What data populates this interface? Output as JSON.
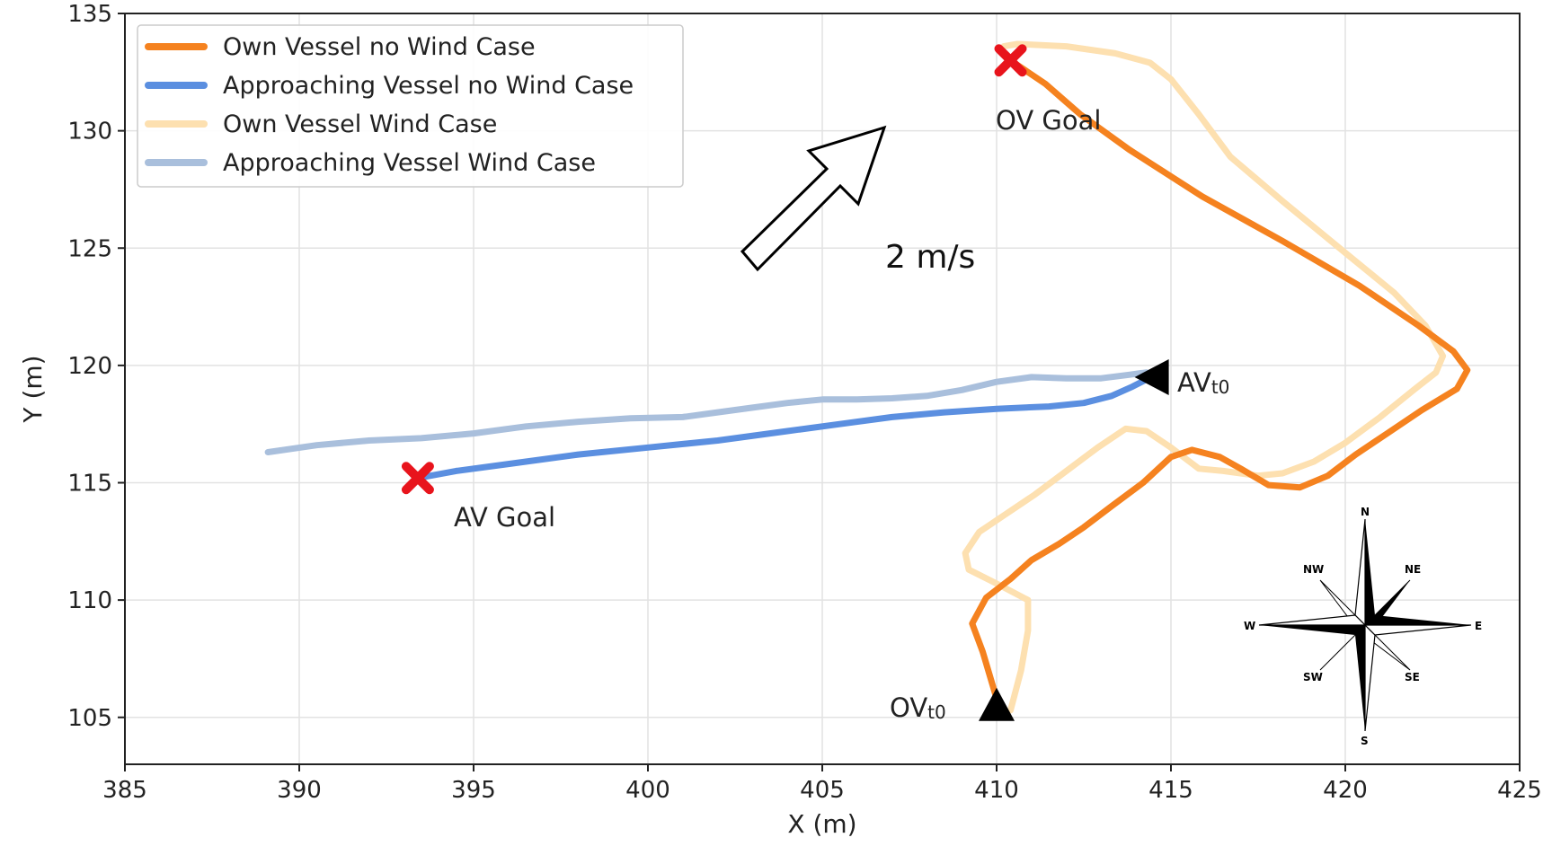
{
  "chart_data": {
    "type": "line",
    "xlabel": "X (m)",
    "ylabel": "Y (m)",
    "xlim": [
      385,
      425
    ],
    "ylim": [
      103,
      135
    ],
    "xticks": [
      385,
      390,
      395,
      400,
      405,
      410,
      415,
      420,
      425
    ],
    "yticks": [
      105,
      110,
      115,
      120,
      125,
      130,
      135
    ],
    "grid": true,
    "legend_position": "top-left",
    "series": [
      {
        "name": "Own Vessel no Wind Case",
        "color": "#f5821f",
        "points": [
          [
            410,
            105.8
          ],
          [
            409.6,
            107.8
          ],
          [
            409.3,
            109
          ],
          [
            409.7,
            110.1
          ],
          [
            410.4,
            110.9
          ],
          [
            411,
            111.7
          ],
          [
            411.8,
            112.4
          ],
          [
            412.5,
            113.1
          ],
          [
            413.3,
            114
          ],
          [
            414.2,
            115
          ],
          [
            415,
            116.1
          ],
          [
            415.6,
            116.4
          ],
          [
            416.4,
            116.1
          ],
          [
            417,
            115.6
          ],
          [
            417.8,
            114.9
          ],
          [
            418.7,
            114.8
          ],
          [
            419.5,
            115.3
          ],
          [
            420.3,
            116.2
          ],
          [
            421.2,
            117.1
          ],
          [
            422.2,
            118.1
          ],
          [
            423.2,
            119
          ],
          [
            423.5,
            119.8
          ],
          [
            423.1,
            120.6
          ],
          [
            422.1,
            121.7
          ],
          [
            420.4,
            123.4
          ],
          [
            418.2,
            125.3
          ],
          [
            415.9,
            127.2
          ],
          [
            413.8,
            129.2
          ],
          [
            412.4,
            130.7
          ],
          [
            411.4,
            132
          ],
          [
            410.6,
            132.8
          ],
          [
            410.4,
            133
          ]
        ]
      },
      {
        "name": "Approaching Vessel no Wind Case",
        "color": "#5b8fe0",
        "points": [
          [
            393.4,
            115.2
          ],
          [
            394.5,
            115.5
          ],
          [
            396,
            115.8
          ],
          [
            398,
            116.2
          ],
          [
            400,
            116.5
          ],
          [
            402,
            116.8
          ],
          [
            404,
            117.2
          ],
          [
            405.5,
            117.5
          ],
          [
            407,
            117.8
          ],
          [
            408.5,
            118
          ],
          [
            410,
            118.15
          ],
          [
            411.5,
            118.25
          ],
          [
            412.5,
            118.4
          ],
          [
            413.3,
            118.7
          ],
          [
            413.9,
            119.1
          ],
          [
            414.3,
            119.4
          ]
        ]
      },
      {
        "name": "Own Vessel Wind Case",
        "color": "#fde0b0",
        "points": [
          [
            410.4,
            105.3
          ],
          [
            410.7,
            107
          ],
          [
            410.9,
            108.7
          ],
          [
            410.9,
            110
          ],
          [
            410,
            110.7
          ],
          [
            409.2,
            111.3
          ],
          [
            409.1,
            112
          ],
          [
            409.5,
            112.9
          ],
          [
            410.3,
            113.7
          ],
          [
            411.1,
            114.5
          ],
          [
            412,
            115.5
          ],
          [
            412.9,
            116.5
          ],
          [
            413.7,
            117.3
          ],
          [
            414.3,
            117.2
          ],
          [
            415,
            116.5
          ],
          [
            415.8,
            115.6
          ],
          [
            416.5,
            115.5
          ],
          [
            417.5,
            115.3
          ],
          [
            418.2,
            115.4
          ],
          [
            419.1,
            115.9
          ],
          [
            420,
            116.7
          ],
          [
            421,
            117.8
          ],
          [
            422,
            119
          ],
          [
            422.6,
            119.7
          ],
          [
            422.8,
            120.4
          ],
          [
            422.3,
            121.7
          ],
          [
            421.4,
            123.1
          ],
          [
            420,
            124.8
          ],
          [
            418.2,
            127
          ],
          [
            416.7,
            128.9
          ],
          [
            415.8,
            130.7
          ],
          [
            415,
            132.2
          ],
          [
            414.4,
            132.9
          ],
          [
            413.4,
            133.3
          ],
          [
            412,
            133.6
          ],
          [
            410.6,
            133.7
          ],
          [
            410.2,
            133.6
          ]
        ]
      },
      {
        "name": "Approaching Vessel Wind Case",
        "color": "#a9bfdc",
        "points": [
          [
            389.1,
            116.3
          ],
          [
            390.5,
            116.6
          ],
          [
            392,
            116.8
          ],
          [
            393.5,
            116.9
          ],
          [
            395,
            117.1
          ],
          [
            396.5,
            117.4
          ],
          [
            398,
            117.6
          ],
          [
            399.5,
            117.75
          ],
          [
            401,
            117.8
          ],
          [
            402,
            118
          ],
          [
            403,
            118.2
          ],
          [
            404,
            118.4
          ],
          [
            405,
            118.55
          ],
          [
            406,
            118.55
          ],
          [
            407,
            118.6
          ],
          [
            408,
            118.7
          ],
          [
            409,
            118.95
          ],
          [
            410,
            119.3
          ],
          [
            411,
            119.5
          ],
          [
            412,
            119.45
          ],
          [
            413,
            119.45
          ],
          [
            413.8,
            119.6
          ],
          [
            414.3,
            119.7
          ]
        ]
      }
    ],
    "markers": [
      {
        "label": "OV Goal",
        "shape": "x",
        "x": 410.4,
        "y": 133,
        "color": "#e8141c"
      },
      {
        "label": "AV Goal",
        "shape": "x",
        "x": 393.4,
        "y": 115.2,
        "color": "#e8141c"
      },
      {
        "label": "OVt0",
        "shape": "triangle-up",
        "x": 410,
        "y": 105.5,
        "color": "#000000"
      },
      {
        "label": "AVt0",
        "shape": "triangle-left",
        "x": 414.5,
        "y": 119.5,
        "color": "#000000"
      }
    ],
    "annotations": {
      "wind_speed": "2 m/s",
      "ov_goal": "OV Goal",
      "av_goal": "AV Goal",
      "ov_start_main": "OV",
      "ov_start_sub": "t0",
      "av_start_main": "AV",
      "av_start_sub": "t0"
    },
    "compass_labels": {
      "n": "N",
      "ne": "NE",
      "e": "E",
      "se": "SE",
      "s": "S",
      "sw": "SW",
      "w": "W",
      "nw": "NW"
    }
  }
}
